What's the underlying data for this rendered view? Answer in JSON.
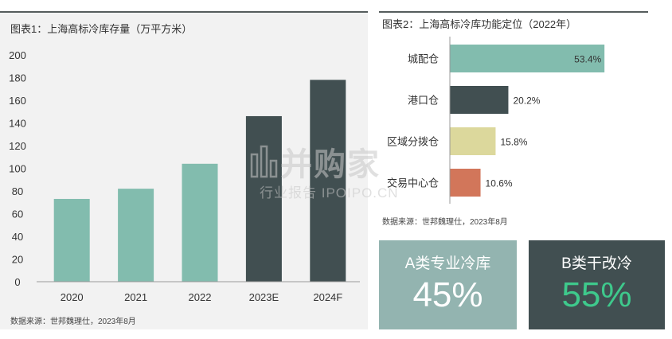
{
  "chart_data": [
    {
      "type": "bar",
      "title": "图表1：上海高标冷库存量（万平方米）",
      "categories": [
        "2020",
        "2021",
        "2022",
        "2023E",
        "2024F"
      ],
      "values": [
        73,
        82,
        104,
        146,
        178
      ],
      "bar_colors": [
        "#82bcae",
        "#82bcae",
        "#82bcae",
        "#414f51",
        "#414f51"
      ],
      "ylim": [
        0,
        200
      ],
      "yticks": [
        0,
        20,
        40,
        60,
        80,
        100,
        120,
        140,
        160,
        180,
        200
      ],
      "xlabel": "",
      "ylabel": "",
      "grid": false,
      "source": "数据来源：世邦魏理仕，2023年8月"
    },
    {
      "type": "bar",
      "orientation": "horizontal",
      "title": "图表2：上海高标冷库功能定位（2022年）",
      "categories": [
        "城配仓",
        "港口仓",
        "区域分拨仓",
        "交易中心仓"
      ],
      "values": [
        53.4,
        20.2,
        15.8,
        10.6
      ],
      "value_labels": [
        "53.4%",
        "20.2%",
        "15.8%",
        "10.6%"
      ],
      "bar_colors": [
        "#82bcae",
        "#414f51",
        "#dcd89c",
        "#d2765a"
      ],
      "xlim": [
        0,
        55
      ],
      "source": "数据来源：世邦魏理仕，2023年8月"
    }
  ],
  "kpis": [
    {
      "label": "A类专业冷库",
      "value": "45%",
      "bg": "#93b4b0"
    },
    {
      "label": "B类干改冷",
      "value": "55%",
      "bg": "#414f51"
    }
  ],
  "watermark": {
    "main": "并购家",
    "sub": "行业报告 IPOIPO.CN"
  }
}
